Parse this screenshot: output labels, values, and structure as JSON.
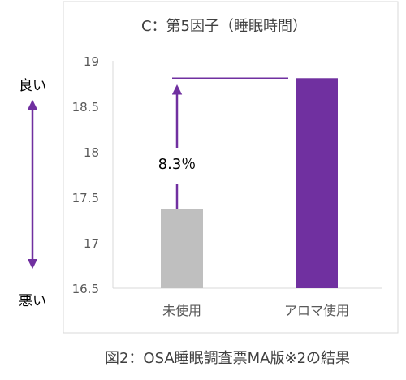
{
  "chart_data": {
    "type": "bar",
    "title": "C：第5因子（睡眠時間）",
    "categories": [
      "未使用",
      "アロマ使用"
    ],
    "values": [
      17.37,
      18.81
    ],
    "ylim": [
      16.5,
      19
    ],
    "yticks": [
      "16.5",
      "17",
      "17.5",
      "18",
      "18.5",
      "19"
    ],
    "bar_colors": [
      "#bfbfbf",
      "#7030a0"
    ],
    "grid": false,
    "annotation": "8.3％",
    "scale_high_label": "良い",
    "scale_low_label": "悪い",
    "accent_color": "#7030a0"
  },
  "caption": "図2：OSA睡眠調査票MA版※2の結果"
}
